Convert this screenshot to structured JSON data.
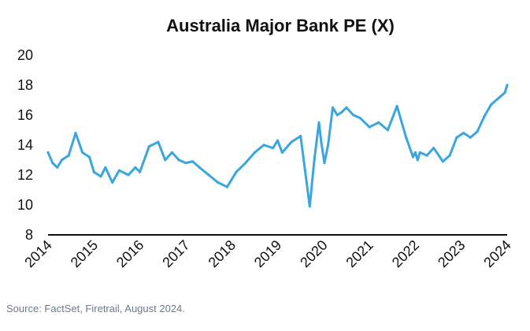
{
  "chart_data": {
    "type": "line",
    "title": "Australia Major Bank PE (X)",
    "xlabel": "",
    "ylabel": "",
    "xlim": [
      2014,
      2024
    ],
    "ylim": [
      8,
      20
    ],
    "yticks": [
      8,
      10,
      12,
      14,
      16,
      18,
      20
    ],
    "xticks": [
      "2014",
      "2015",
      "2016",
      "2017",
      "2018",
      "2019",
      "2020",
      "2021",
      "2022",
      "2023",
      "2024"
    ],
    "grid": false,
    "legend": false,
    "series": [
      {
        "color": "#3aa6e0",
        "x": [
          2014.0,
          2014.1,
          2014.2,
          2014.3,
          2014.45,
          2014.6,
          2014.75,
          2014.9,
          2015.0,
          2015.15,
          2015.25,
          2015.4,
          2015.55,
          2015.75,
          2015.9,
          2016.0,
          2016.2,
          2016.4,
          2016.55,
          2016.7,
          2016.85,
          2017.0,
          2017.15,
          2017.3,
          2017.5,
          2017.7,
          2017.9,
          2018.1,
          2018.3,
          2018.5,
          2018.7,
          2018.9,
          2019.0,
          2019.1,
          2019.3,
          2019.5,
          2019.7,
          2019.8,
          2019.9,
          2019.95,
          2020.02,
          2020.1,
          2020.2,
          2020.3,
          2020.4,
          2020.5,
          2020.65,
          2020.8,
          2021.0,
          2021.2,
          2021.4,
          2021.6,
          2021.8,
          2021.95,
          2022.0,
          2022.05,
          2022.1,
          2022.25,
          2022.4,
          2022.6,
          2022.75,
          2022.9,
          2023.05,
          2023.2,
          2023.35,
          2023.5,
          2023.65,
          2023.8,
          2023.95,
          2024.0
        ],
        "values": [
          13.5,
          12.8,
          12.5,
          13.0,
          13.3,
          14.8,
          13.5,
          13.2,
          12.2,
          11.9,
          12.5,
          11.5,
          12.3,
          12.0,
          12.5,
          12.2,
          13.9,
          14.2,
          13.0,
          13.5,
          13.0,
          12.8,
          12.9,
          12.5,
          12.0,
          11.5,
          11.2,
          12.2,
          12.8,
          13.5,
          14.0,
          13.8,
          14.3,
          13.5,
          14.2,
          14.6,
          9.9,
          13.0,
          15.5,
          14.2,
          12.8,
          14.0,
          16.5,
          16.0,
          16.2,
          16.5,
          16.0,
          15.8,
          15.2,
          15.5,
          15.0,
          16.6,
          14.5,
          13.2,
          13.5,
          13.0,
          13.5,
          13.3,
          13.8,
          12.9,
          13.3,
          14.5,
          14.8,
          14.5,
          14.9,
          15.9,
          16.7,
          17.1,
          17.5,
          18.0
        ]
      }
    ]
  },
  "source_note": "Source: FactSet, Firetrail, August 2024."
}
